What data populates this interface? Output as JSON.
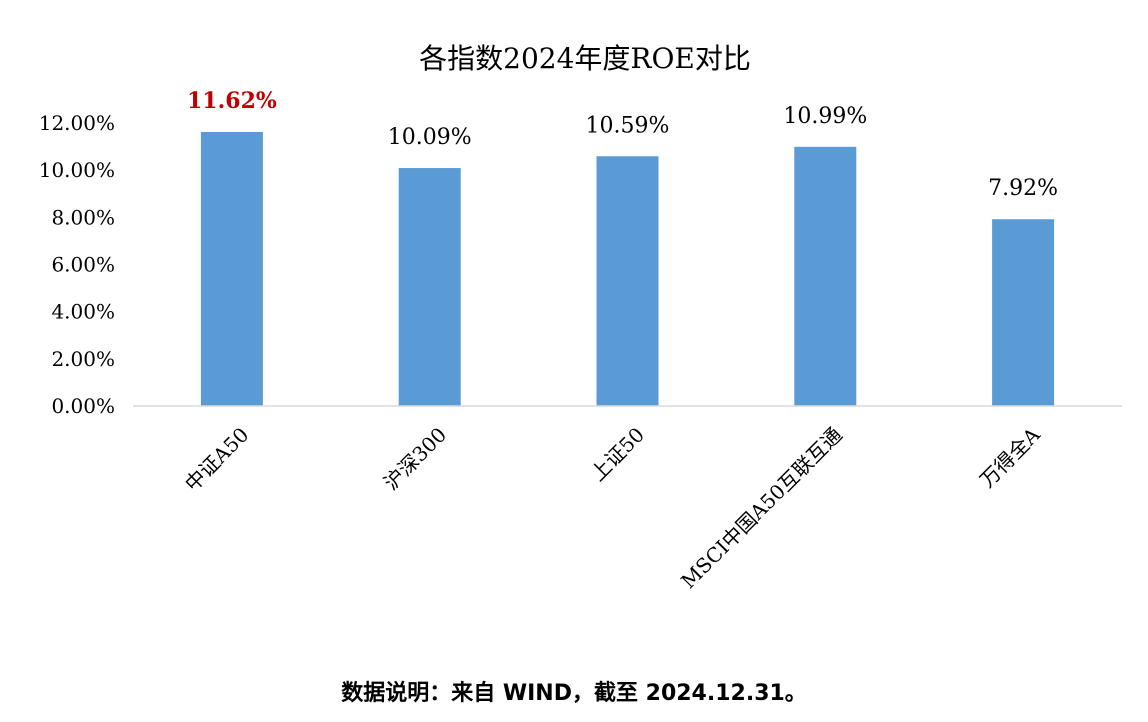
{
  "chart_data": {
    "type": "bar",
    "title": "各指数2024年度ROE对比",
    "categories": [
      "中证A50",
      "沪深300",
      "上证50",
      "MSCI中国A50互联互通",
      "万得全A"
    ],
    "values": [
      11.62,
      10.09,
      10.59,
      10.99,
      7.92
    ],
    "data_labels": [
      "11.62%",
      "10.09%",
      "10.59%",
      "10.99%",
      "7.92%"
    ],
    "highlight_index": 0,
    "y_ticks": [
      "0.00%",
      "2.00%",
      "4.00%",
      "6.00%",
      "8.00%",
      "10.00%",
      "12.00%"
    ],
    "y_tick_values": [
      0,
      2,
      4,
      6,
      8,
      10,
      12
    ],
    "ylim": [
      0,
      12
    ],
    "xlabel": "",
    "ylabel": "",
    "grid": false,
    "legend": "none",
    "bar_color": "#5b9bd5",
    "highlight_label_color": "#c00000",
    "axis_color": "#d9d9d9"
  },
  "note": "数据说明：来自 WIND，截至 2024.12.31。"
}
